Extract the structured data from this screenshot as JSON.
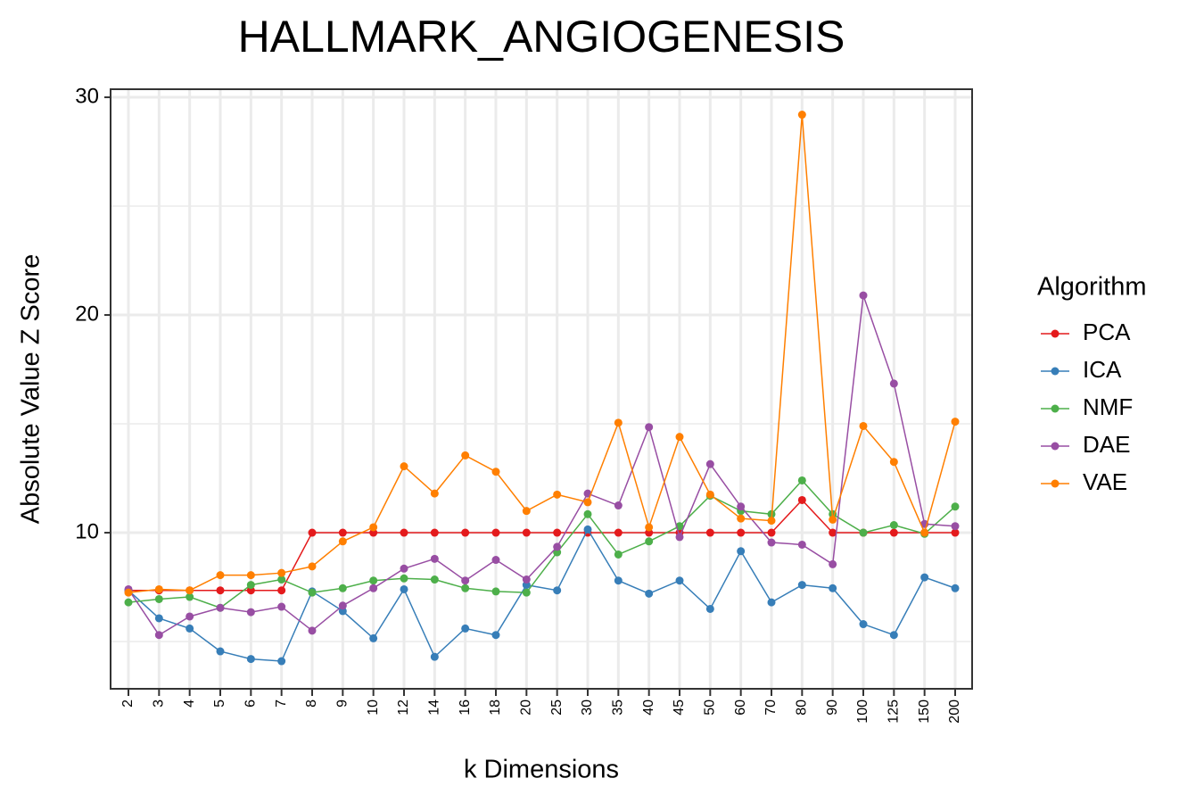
{
  "chart_data": {
    "type": "line",
    "title": "HALLMARK_ANGIOGENESIS",
    "x_label": "k Dimensions",
    "y_label": "Absolute Value Z Score",
    "legend_title": "Algorithm",
    "legend": "right",
    "grid": true,
    "categories": [
      "2",
      "3",
      "4",
      "5",
      "6",
      "7",
      "8",
      "9",
      "10",
      "12",
      "14",
      "16",
      "18",
      "20",
      "25",
      "30",
      "35",
      "40",
      "45",
      "50",
      "60",
      "70",
      "80",
      "90",
      "100",
      "125",
      "150",
      "200"
    ],
    "ylim": [
      2.83,
      30.37
    ],
    "yticks": [
      10,
      20,
      30
    ],
    "minor_yticks": [
      5,
      15,
      25
    ],
    "series": [
      {
        "name": "PCA",
        "color": "#e41a1c",
        "values": [
          7.35,
          7.35,
          7.35,
          7.35,
          7.35,
          7.35,
          10,
          10,
          10,
          10,
          10,
          10,
          10,
          10,
          10,
          10,
          10,
          10,
          10,
          10,
          10,
          10,
          11.5,
          10,
          10,
          10,
          10,
          10
        ]
      },
      {
        "name": "ICA",
        "color": "#377eb8",
        "values": [
          7.35,
          6.07,
          5.6,
          4.55,
          4.2,
          4.1,
          7.3,
          6.4,
          5.15,
          7.4,
          4.3,
          5.6,
          5.3,
          7.6,
          7.35,
          10.15,
          7.8,
          7.2,
          7.8,
          6.5,
          9.15,
          6.8,
          7.6,
          7.45,
          5.8,
          5.3,
          7.95,
          7.45
        ]
      },
      {
        "name": "NMF",
        "color": "#4daf4a",
        "values": [
          6.8,
          6.95,
          7.05,
          6.55,
          7.6,
          7.85,
          7.25,
          7.45,
          7.8,
          7.9,
          7.85,
          7.45,
          7.3,
          7.25,
          9.1,
          10.85,
          9.0,
          9.6,
          10.3,
          11.7,
          11.0,
          10.85,
          12.4,
          10.85,
          10,
          10.35,
          9.95,
          11.2
        ]
      },
      {
        "name": "DAE",
        "color": "#984ea3",
        "values": [
          7.4,
          5.3,
          6.15,
          6.55,
          6.35,
          6.6,
          5.5,
          6.65,
          7.45,
          8.35,
          8.8,
          7.8,
          8.75,
          7.85,
          9.35,
          11.8,
          11.25,
          14.85,
          9.8,
          13.15,
          11.2,
          9.55,
          9.45,
          8.55,
          20.9,
          16.85,
          10.4,
          10.3
        ]
      },
      {
        "name": "VAE",
        "color": "#ff7f00",
        "values": [
          7.25,
          7.4,
          7.35,
          8.05,
          8.05,
          8.15,
          8.45,
          9.6,
          10.25,
          13.05,
          11.8,
          13.55,
          12.8,
          11.0,
          11.75,
          11.4,
          15.05,
          10.25,
          14.4,
          11.75,
          10.65,
          10.55,
          29.2,
          10.6,
          14.9,
          13.25,
          10,
          15.1
        ]
      }
    ]
  }
}
